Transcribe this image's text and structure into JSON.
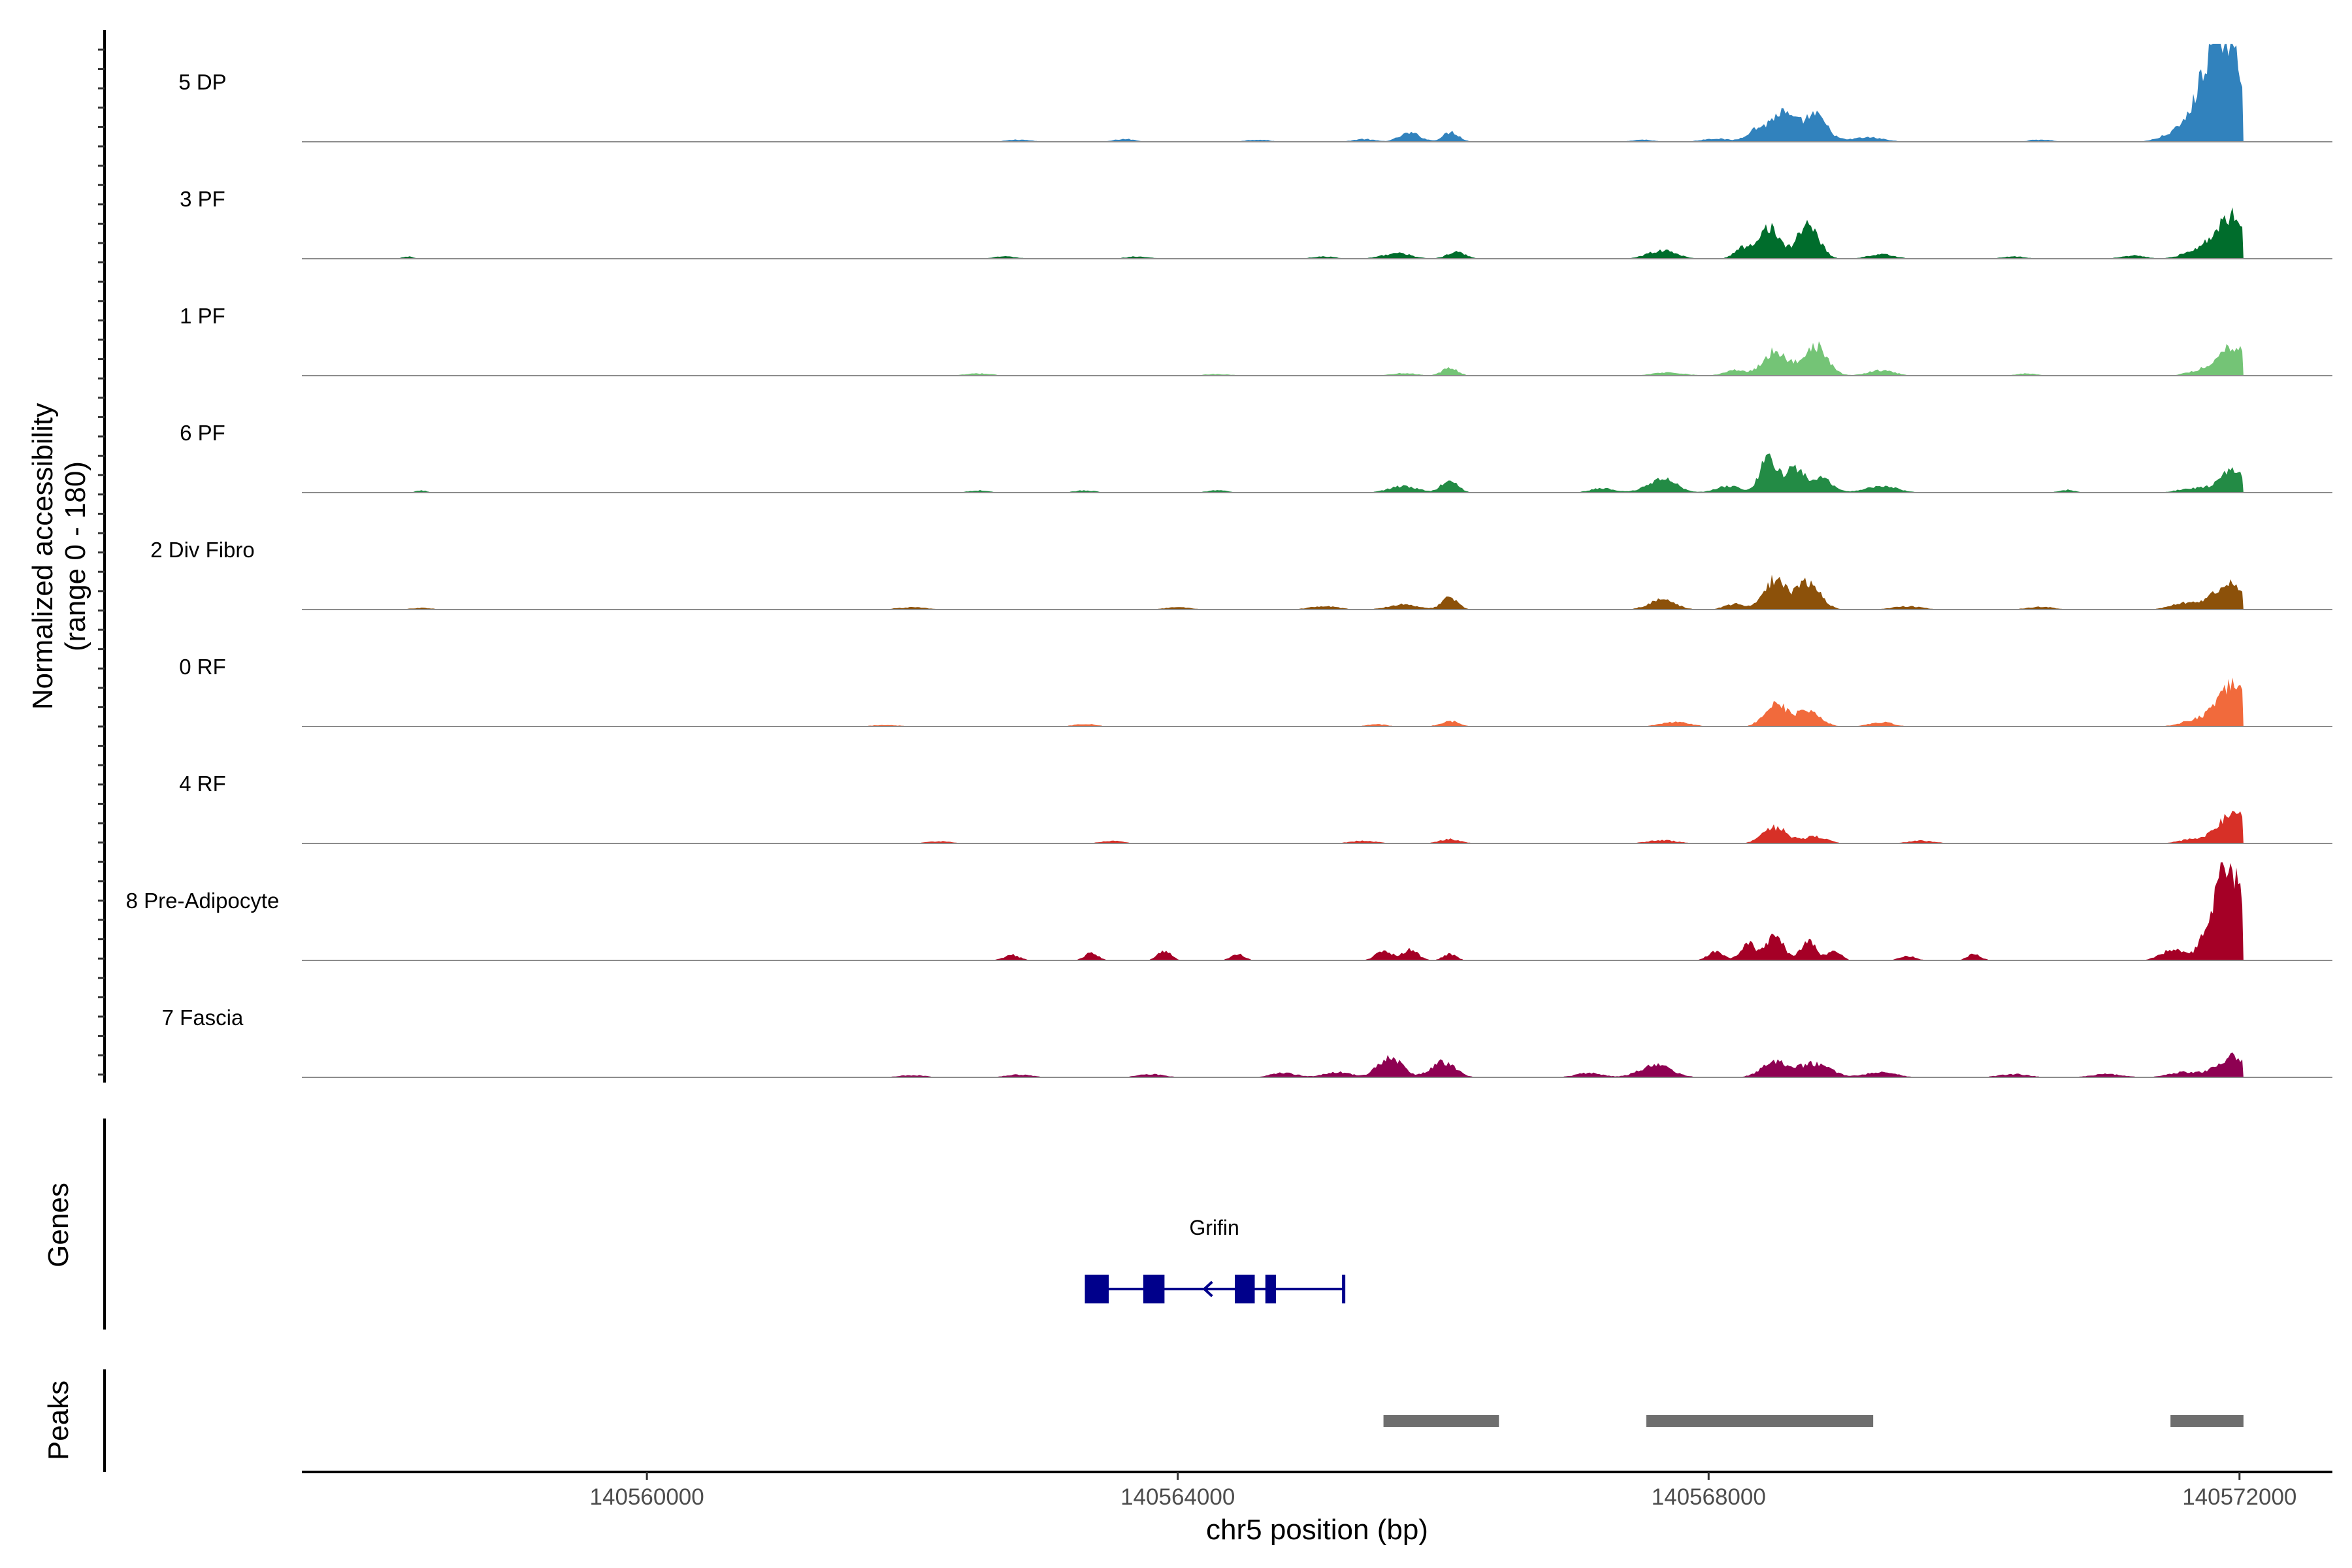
{
  "chart_data": {
    "type": "area",
    "title": "",
    "chromosome": "chr5",
    "xlabel": "chr5 position (bp)",
    "ylabel": "Normalized accessibility",
    "ylabel_range": "(range 0 - 180)",
    "ylim": [
      0,
      180
    ],
    "xlim": [
      140557400,
      140572700
    ],
    "x_ticks": [
      140560000,
      140564000,
      140568000,
      140572000
    ],
    "x_tick_labels": [
      "140560000",
      "140564000",
      "140568000",
      "140572000"
    ],
    "signal_end": 140572030,
    "grid": false,
    "legend": "none",
    "tracks": [
      {
        "name": "5 DP",
        "color": "#3182bd",
        "peaks": [
          {
            "pos": 140571900,
            "h": 160,
            "w": 130
          },
          {
            "pos": 140571780,
            "h": 70,
            "w": 110
          },
          {
            "pos": 140571550,
            "h": 18,
            "w": 120
          },
          {
            "pos": 140568550,
            "h": 52,
            "w": 90
          },
          {
            "pos": 140568800,
            "h": 48,
            "w": 90
          },
          {
            "pos": 140568350,
            "h": 20,
            "w": 70
          },
          {
            "pos": 140568050,
            "h": 6,
            "w": 100
          },
          {
            "pos": 140566060,
            "h": 18,
            "w": 60
          },
          {
            "pos": 140565750,
            "h": 16,
            "w": 80
          },
          {
            "pos": 140565400,
            "h": 5,
            "w": 80
          },
          {
            "pos": 140567500,
            "h": 4,
            "w": 80
          },
          {
            "pos": 140569200,
            "h": 8,
            "w": 120
          },
          {
            "pos": 140570500,
            "h": 4,
            "w": 90
          },
          {
            "pos": 140564600,
            "h": 4,
            "w": 90
          },
          {
            "pos": 140563600,
            "h": 5,
            "w": 80
          },
          {
            "pos": 140562800,
            "h": 4,
            "w": 90
          }
        ]
      },
      {
        "name": "3 PF",
        "color": "#006d2c",
        "peaks": [
          {
            "pos": 140571950,
            "h": 80,
            "w": 110
          },
          {
            "pos": 140571700,
            "h": 18,
            "w": 110
          },
          {
            "pos": 140571200,
            "h": 6,
            "w": 90
          },
          {
            "pos": 140568450,
            "h": 60,
            "w": 80
          },
          {
            "pos": 140568750,
            "h": 65,
            "w": 80
          },
          {
            "pos": 140568250,
            "h": 18,
            "w": 60
          },
          {
            "pos": 140567650,
            "h": 15,
            "w": 110
          },
          {
            "pos": 140566100,
            "h": 12,
            "w": 70
          },
          {
            "pos": 140565650,
            "h": 10,
            "w": 110
          },
          {
            "pos": 140565100,
            "h": 4,
            "w": 90
          },
          {
            "pos": 140569300,
            "h": 8,
            "w": 100
          },
          {
            "pos": 140570300,
            "h": 4,
            "w": 90
          },
          {
            "pos": 140563700,
            "h": 4,
            "w": 90
          },
          {
            "pos": 140562700,
            "h": 4,
            "w": 90
          },
          {
            "pos": 140558200,
            "h": 4,
            "w": 40
          }
        ]
      },
      {
        "name": "1 PF",
        "color": "#74c476",
        "peaks": [
          {
            "pos": 140571950,
            "h": 55,
            "w": 110
          },
          {
            "pos": 140571700,
            "h": 8,
            "w": 100
          },
          {
            "pos": 140568500,
            "h": 45,
            "w": 90
          },
          {
            "pos": 140568800,
            "h": 55,
            "w": 90
          },
          {
            "pos": 140568200,
            "h": 10,
            "w": 80
          },
          {
            "pos": 140567700,
            "h": 6,
            "w": 120
          },
          {
            "pos": 140566050,
            "h": 14,
            "w": 60
          },
          {
            "pos": 140565700,
            "h": 5,
            "w": 90
          },
          {
            "pos": 140569300,
            "h": 10,
            "w": 100
          },
          {
            "pos": 140570400,
            "h": 4,
            "w": 80
          },
          {
            "pos": 140564300,
            "h": 3,
            "w": 100
          },
          {
            "pos": 140562500,
            "h": 4,
            "w": 100
          }
        ]
      },
      {
        "name": "6 PF",
        "color": "#238b45",
        "peaks": [
          {
            "pos": 140571950,
            "h": 40,
            "w": 100
          },
          {
            "pos": 140571650,
            "h": 8,
            "w": 110
          },
          {
            "pos": 140570700,
            "h": 5,
            "w": 60
          },
          {
            "pos": 140568450,
            "h": 70,
            "w": 60
          },
          {
            "pos": 140568650,
            "h": 45,
            "w": 70
          },
          {
            "pos": 140568850,
            "h": 25,
            "w": 80
          },
          {
            "pos": 140568150,
            "h": 12,
            "w": 90
          },
          {
            "pos": 140567650,
            "h": 25,
            "w": 110
          },
          {
            "pos": 140567200,
            "h": 8,
            "w": 90
          },
          {
            "pos": 140566050,
            "h": 25,
            "w": 60
          },
          {
            "pos": 140565700,
            "h": 12,
            "w": 110
          },
          {
            "pos": 140569300,
            "h": 12,
            "w": 120
          },
          {
            "pos": 140564300,
            "h": 4,
            "w": 80
          },
          {
            "pos": 140563300,
            "h": 4,
            "w": 80
          },
          {
            "pos": 140562500,
            "h": 4,
            "w": 80
          },
          {
            "pos": 140558300,
            "h": 4,
            "w": 40
          }
        ]
      },
      {
        "name": "2 Div Fibro",
        "color": "#8c510a",
        "peaks": [
          {
            "pos": 140571920,
            "h": 50,
            "w": 110
          },
          {
            "pos": 140571600,
            "h": 12,
            "w": 110
          },
          {
            "pos": 140568500,
            "h": 55,
            "w": 80
          },
          {
            "pos": 140568750,
            "h": 50,
            "w": 90
          },
          {
            "pos": 140568200,
            "h": 10,
            "w": 80
          },
          {
            "pos": 140567650,
            "h": 18,
            "w": 100
          },
          {
            "pos": 140566050,
            "h": 22,
            "w": 60
          },
          {
            "pos": 140565700,
            "h": 10,
            "w": 110
          },
          {
            "pos": 140565100,
            "h": 6,
            "w": 110
          },
          {
            "pos": 140569500,
            "h": 6,
            "w": 110
          },
          {
            "pos": 140570500,
            "h": 5,
            "w": 100
          },
          {
            "pos": 140564000,
            "h": 4,
            "w": 100
          },
          {
            "pos": 140562000,
            "h": 4,
            "w": 120
          },
          {
            "pos": 140558300,
            "h": 3,
            "w": 80
          }
        ]
      },
      {
        "name": "0 RF",
        "color": "#f16a3c",
        "peaks": [
          {
            "pos": 140571950,
            "h": 75,
            "w": 120
          },
          {
            "pos": 140571650,
            "h": 10,
            "w": 100
          },
          {
            "pos": 140568500,
            "h": 45,
            "w": 80
          },
          {
            "pos": 140568750,
            "h": 30,
            "w": 90
          },
          {
            "pos": 140567750,
            "h": 8,
            "w": 110
          },
          {
            "pos": 140566050,
            "h": 10,
            "w": 70
          },
          {
            "pos": 140565500,
            "h": 4,
            "w": 80
          },
          {
            "pos": 140569300,
            "h": 8,
            "w": 90
          },
          {
            "pos": 140563300,
            "h": 5,
            "w": 80
          },
          {
            "pos": 140561800,
            "h": 3,
            "w": 100
          }
        ]
      },
      {
        "name": "4 RF",
        "color": "#d73027",
        "peaks": [
          {
            "pos": 140571950,
            "h": 55,
            "w": 110
          },
          {
            "pos": 140571650,
            "h": 8,
            "w": 100
          },
          {
            "pos": 140568500,
            "h": 30,
            "w": 90
          },
          {
            "pos": 140568800,
            "h": 12,
            "w": 90
          },
          {
            "pos": 140567650,
            "h": 6,
            "w": 110
          },
          {
            "pos": 140566050,
            "h": 8,
            "w": 80
          },
          {
            "pos": 140565400,
            "h": 5,
            "w": 100
          },
          {
            "pos": 140569600,
            "h": 5,
            "w": 100
          },
          {
            "pos": 140563500,
            "h": 5,
            "w": 80
          },
          {
            "pos": 140562200,
            "h": 4,
            "w": 90
          }
        ]
      },
      {
        "name": "8 Pre-Adipocyte",
        "color": "#a50026",
        "peaks": [
          {
            "pos": 140571880,
            "h": 150,
            "w": 60
          },
          {
            "pos": 140572000,
            "h": 110,
            "w": 70
          },
          {
            "pos": 140571750,
            "h": 45,
            "w": 60
          },
          {
            "pos": 140571500,
            "h": 20,
            "w": 90
          },
          {
            "pos": 140568500,
            "h": 50,
            "w": 60
          },
          {
            "pos": 140568750,
            "h": 35,
            "w": 60
          },
          {
            "pos": 140568300,
            "h": 30,
            "w": 60
          },
          {
            "pos": 140568050,
            "h": 15,
            "w": 60
          },
          {
            "pos": 140568950,
            "h": 18,
            "w": 50
          },
          {
            "pos": 140566050,
            "h": 12,
            "w": 50
          },
          {
            "pos": 140565750,
            "h": 20,
            "w": 60
          },
          {
            "pos": 140565550,
            "h": 18,
            "w": 60
          },
          {
            "pos": 140569500,
            "h": 8,
            "w": 60
          },
          {
            "pos": 140570000,
            "h": 12,
            "w": 50
          },
          {
            "pos": 140564450,
            "h": 12,
            "w": 50
          },
          {
            "pos": 140563900,
            "h": 18,
            "w": 50
          },
          {
            "pos": 140563350,
            "h": 14,
            "w": 50
          },
          {
            "pos": 140562750,
            "h": 10,
            "w": 60
          }
        ]
      },
      {
        "name": "7 Fascia",
        "color": "#8e0152",
        "peaks": [
          {
            "pos": 140571950,
            "h": 38,
            "w": 110
          },
          {
            "pos": 140571600,
            "h": 10,
            "w": 120
          },
          {
            "pos": 140571000,
            "h": 6,
            "w": 120
          },
          {
            "pos": 140568500,
            "h": 28,
            "w": 100
          },
          {
            "pos": 140568800,
            "h": 25,
            "w": 120
          },
          {
            "pos": 140567600,
            "h": 22,
            "w": 120
          },
          {
            "pos": 140567100,
            "h": 8,
            "w": 100
          },
          {
            "pos": 140566000,
            "h": 28,
            "w": 90
          },
          {
            "pos": 140565600,
            "h": 38,
            "w": 90
          },
          {
            "pos": 140565200,
            "h": 10,
            "w": 100
          },
          {
            "pos": 140569300,
            "h": 10,
            "w": 110
          },
          {
            "pos": 140570300,
            "h": 6,
            "w": 110
          },
          {
            "pos": 140564800,
            "h": 8,
            "w": 100
          },
          {
            "pos": 140563800,
            "h": 6,
            "w": 100
          },
          {
            "pos": 140562800,
            "h": 5,
            "w": 100
          },
          {
            "pos": 140562000,
            "h": 4,
            "w": 100
          }
        ]
      }
    ],
    "genes_label": "Genes",
    "gene": {
      "name": "Grifin",
      "strand": "-",
      "color": "#00008b",
      "start": 140563300,
      "end": 140565250,
      "exons": [
        [
          140563300,
          140563480
        ],
        [
          140563740,
          140563900
        ],
        [
          140564430,
          140564580
        ],
        [
          140564660,
          140564740
        ]
      ],
      "arrow_pos": 140564200
    },
    "peaks_label": "Peaks",
    "peak_regions": [
      [
        140565550,
        140566420
      ],
      [
        140567530,
        140569240
      ],
      [
        140571480,
        140572030
      ]
    ],
    "peak_color": "#6e6e6e"
  }
}
